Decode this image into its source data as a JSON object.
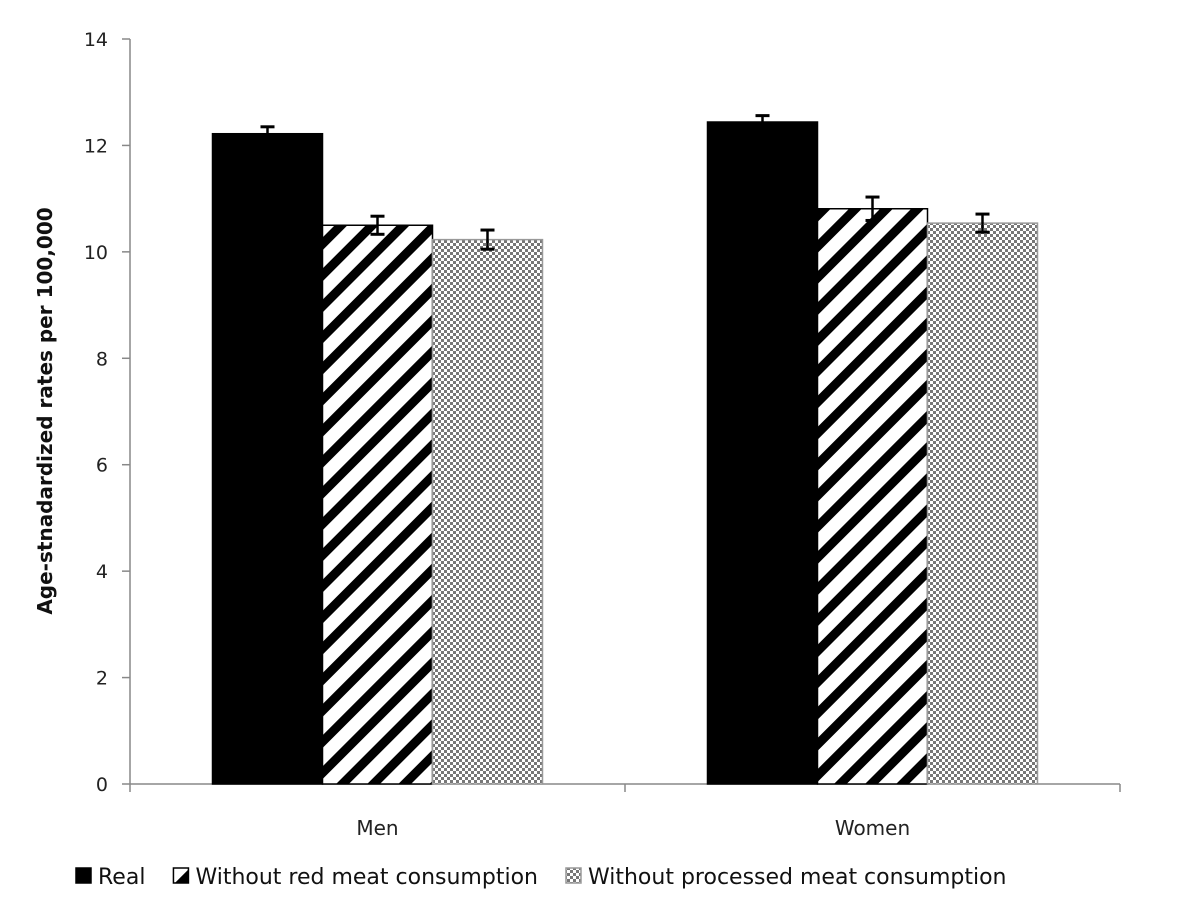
{
  "chart_data": {
    "type": "bar",
    "title": "",
    "xlabel": "",
    "ylabel": "Age-stnadardized  rates per 100,000",
    "ylim": [
      0,
      14
    ],
    "yticks": [
      0,
      2,
      4,
      6,
      8,
      10,
      12,
      14
    ],
    "categories": [
      "Men",
      "Women"
    ],
    "legend_position": "bottom",
    "series": [
      {
        "name": "Real",
        "pattern": "solid",
        "color": "#000000",
        "values": [
          12.22,
          12.44
        ],
        "errors": [
          0.13,
          0.12
        ]
      },
      {
        "name": "Without red meat consumption",
        "pattern": "diagonal-stripes",
        "color": "#000000",
        "values": [
          10.5,
          10.81
        ],
        "errors": [
          0.17,
          0.22
        ]
      },
      {
        "name": "Without processed meat consumption",
        "pattern": "checkered",
        "color": "#888888",
        "values": [
          10.23,
          10.54
        ],
        "errors": [
          0.18,
          0.17
        ]
      }
    ]
  }
}
